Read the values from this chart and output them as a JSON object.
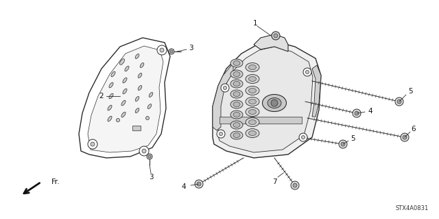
{
  "background_color": "#ffffff",
  "diagram_code": "STX4A0831",
  "figure_width": 6.4,
  "figure_height": 3.19,
  "dpi": 100,
  "line_color": "#2a2a2a",
  "bolt_color": "#444444",
  "fill_light": "#f0f0f0",
  "fill_mid": "#d8d8d8",
  "fill_dark": "#aaaaaa"
}
